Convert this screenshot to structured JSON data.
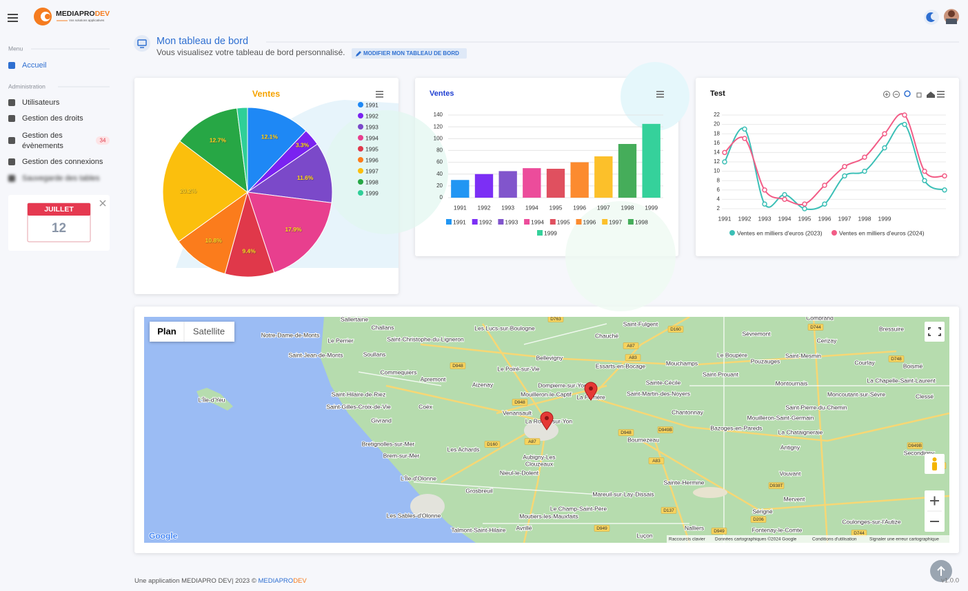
{
  "header": {
    "brand": "MEDIAPRO",
    "brand_accent": "DEV",
    "tagline": "Vos solutions applicatives"
  },
  "sidebar": {
    "sections": [
      {
        "title": "Menu",
        "items": [
          {
            "label": "Accueil"
          }
        ]
      },
      {
        "title": "Administration",
        "items": [
          {
            "label": "Utilisateurs"
          },
          {
            "label": "Gestion des droits"
          },
          {
            "label": "Gestion des",
            "label2": "évènements",
            "badge": "34"
          },
          {
            "label": "Gestion des connexions"
          },
          {
            "label": "Sauvegarde des tables"
          }
        ]
      }
    ],
    "calendar": {
      "month": "JUILLET",
      "day": "12"
    }
  },
  "page": {
    "title": "Mon tableau de bord",
    "subtitle": "Vous visualisez votre tableau de bord personnalisé.",
    "button": "MODIFIER MON TABLEAU DE BORD"
  },
  "chart_data": [
    {
      "type": "pie",
      "title": "Ventes",
      "categories": [
        "1991",
        "1992",
        "1993",
        "1994",
        "1995",
        "1996",
        "1997",
        "1998",
        "1999"
      ],
      "values": [
        12.1,
        3.3,
        11.6,
        17.9,
        9.4,
        10.8,
        20.2,
        12.7,
        2.0
      ],
      "value_labels": [
        "12.1%",
        "3.3%",
        "11.6%",
        "17.9%",
        "9.4%",
        "10.8%",
        "20.2%",
        "12.7%",
        null
      ],
      "colors": [
        "#1e88f5",
        "#7a22f0",
        "#7b49c9",
        "#e83f8e",
        "#e0384a",
        "#fb7c1c",
        "#fbbf0d",
        "#27a745",
        "#2fcf98"
      ],
      "legend": "right"
    },
    {
      "type": "bar",
      "title": "Ventes",
      "categories": [
        "1991",
        "1992",
        "1993",
        "1994",
        "1995",
        "1996",
        "1997",
        "1998",
        "1999"
      ],
      "values": [
        30,
        40,
        45,
        50,
        49,
        60,
        70,
        91,
        125
      ],
      "colors": [
        "#2196f3",
        "#7c2ff5",
        "#8155cc",
        "#ec4c9b",
        "#e0505f",
        "#fc8b2f",
        "#fcc02a",
        "#45ad5a",
        "#35d19b"
      ],
      "ylim": [
        0,
        140
      ],
      "yticks": [
        0,
        20,
        40,
        60,
        80,
        100,
        120,
        140
      ],
      "grid": true,
      "legend": "bottom"
    },
    {
      "type": "line",
      "title": "Test",
      "categories": [
        "1991",
        "1992",
        "1993",
        "1994",
        "1995",
        "1996",
        "1997",
        "1998",
        "1999",
        null,
        null,
        null
      ],
      "series": [
        {
          "name": "Ventes en milliers d'euros (2023)",
          "color": "#3bbfb6",
          "values": [
            12,
            19,
            3,
            5,
            2,
            3,
            9,
            10,
            15,
            20,
            8,
            6
          ]
        },
        {
          "name": "Ventes en milliers d'euros (2024)",
          "color": "#f25c86",
          "values": [
            14,
            17,
            6,
            4,
            3,
            7,
            11,
            13,
            18,
            22,
            10,
            9
          ]
        }
      ],
      "ylim": [
        2,
        22
      ],
      "yticks": [
        2,
        4,
        6,
        8,
        10,
        12,
        14,
        16,
        18,
        20,
        22
      ],
      "grid": true,
      "legend": "bottom"
    }
  ],
  "map": {
    "buttons": [
      "Plan",
      "Satellite"
    ],
    "places": [
      "Sallertaine",
      "Challans",
      "Les Lucs-sur-Boulogne",
      "Saint-Fulgent",
      "Notre-Dame-de-Monts",
      "Le Perrier",
      "Saint-Christophe-du-Ligneron",
      "Chauché",
      "Sévremont",
      "Bressuire",
      "Saint-Jean-de-Monts",
      "Soullans",
      "Bellevigny",
      "Le Boupère",
      "Pouzauges",
      "Saint-Mesmin",
      "Cerizay",
      "Courlay",
      "Boismé",
      "Mouchamps",
      "Essarts-en-Bocage",
      "Le Poiré-sur-Vie",
      "Commequiers",
      "Apremont",
      "Aizenay",
      "Dompierre-sur-Yon",
      "Sainte-Cécile",
      "Saint-Prouant",
      "Montournais",
      "La Chapelle-Saint-Laurent",
      "Saint-Hilaire-de-Riez",
      "Mouilleron-le-Captif",
      "La Ferrière",
      "Saint-Martin-des-Noyers",
      "Moncoutant-sur-Sèvre",
      "Clessé",
      "Saint-Gilles-Croix-de-Vie",
      "Coëx",
      "Venansault",
      "Chantonnay",
      "Saint-Pierre-du-Chemin",
      "La Roche-sur-Yon",
      "Givrand",
      "Mouilleron-Saint-Germain",
      "Bazoges-en-Pareds",
      "La Chataigneraie",
      "Bournezeau",
      "Bretignolles-sur-Mer",
      "Les Achards",
      "Antigny",
      "Secondigny",
      "Brem-sur-Mer",
      "Aubigny-Les",
      "Clouzeaux",
      "Nieul-le-Dolent",
      "L'Île-d'Olonne",
      "Vouvant",
      "Grosbreuil",
      "Mareuil-sur-Lay-Dissais",
      "Sainte-Hermine",
      "Mervent",
      "Le Champ-Saint-Père",
      "Moutiers-les-Mauxfaits",
      "Les Sables-d'Olonne",
      "Sérigné",
      "Coulonges-sur-l'Autize",
      "Avrillé",
      "Talmont-Saint-Hilaire",
      "Luçon",
      "Nalliers",
      "Fontenay-le-Comte",
      "L'Île-d'Yeu",
      "Combrand"
    ],
    "roads": [
      "D763",
      "D160",
      "A87",
      "A83",
      "D948",
      "D744",
      "D748",
      "D948",
      "D160",
      "A87",
      "D948",
      "D949B",
      "A83",
      "D938T",
      "D137",
      "D949",
      "D949B",
      "D748",
      "D744",
      "D949",
      "D206"
    ],
    "logo": "Google",
    "attribution": [
      "Raccourcis clavier",
      "Données cartographiques ©2024 Google",
      "Conditions d'utilisation",
      "Signaler une erreur cartographique"
    ]
  },
  "footer": {
    "text": "Une application MEDIAPRO DEV| 2023 © ",
    "brand": "MEDIAPRO",
    "brand_accent": "DEV",
    "version": "v1.0.0"
  }
}
